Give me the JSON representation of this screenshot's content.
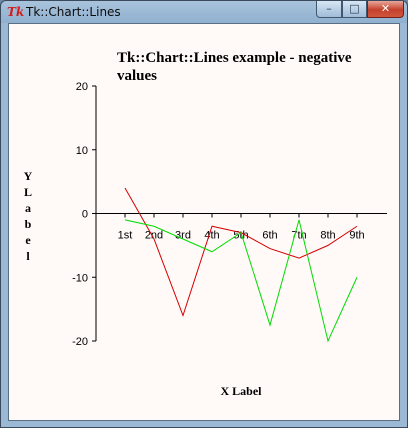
{
  "window": {
    "title": "Tk::Chart::Lines",
    "app_icon": "Tk",
    "controls": {
      "minimize": "–",
      "maximize": "□",
      "close": "✕"
    }
  },
  "chart_data": {
    "type": "line",
    "title_lines": [
      "Tk::Chart::Lines example - negative",
      "values"
    ],
    "xlabel": "X Label",
    "ylabel": "Y Label",
    "categories": [
      "1st",
      "2nd",
      "3rd",
      "4th",
      "5th",
      "6th",
      "7th",
      "8th",
      "9th"
    ],
    "ylim": [
      -20,
      20
    ],
    "yticks": [
      20,
      10,
      0,
      -10,
      -20
    ],
    "grid": false,
    "legend": false,
    "series": [
      {
        "color": "#d40000",
        "values": [
          4,
          -4,
          -16,
          -2,
          -3,
          -5.5,
          -7,
          -5,
          -2
        ]
      },
      {
        "color": "#00dd00",
        "values": [
          -1,
          -2,
          -4,
          -6,
          -3,
          -17.5,
          -1,
          -20,
          -10
        ]
      }
    ]
  }
}
